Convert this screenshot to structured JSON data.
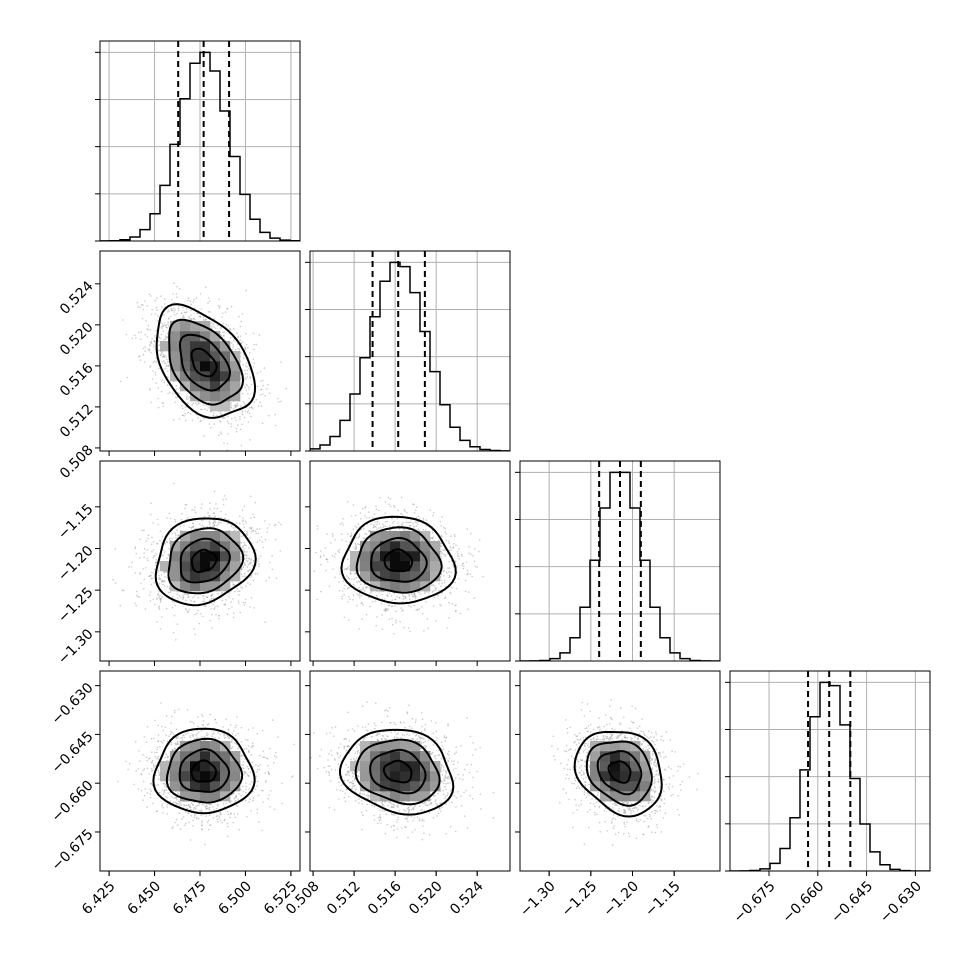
{
  "chart_data": {
    "type": "corner",
    "n_params": 4,
    "parameters": [
      {
        "index": 0,
        "mean": 6.477,
        "sd": 0.0135,
        "range": [
          6.42,
          6.53
        ],
        "ticks": [
          6.425,
          6.45,
          6.475,
          6.5,
          6.525
        ],
        "tick_labels": [
          "6.425",
          "6.450",
          "6.475",
          "6.500",
          "6.525"
        ],
        "quantiles": [
          6.463,
          6.477,
          6.491
        ]
      },
      {
        "index": 1,
        "mean": 0.5163,
        "sd": 0.0027,
        "range": [
          0.5077,
          0.5272
        ],
        "ticks": [
          0.508,
          0.512,
          0.516,
          0.52,
          0.524
        ],
        "tick_labels": [
          "0.508",
          "0.512",
          "0.516",
          "0.520",
          "0.524"
        ],
        "quantiles": [
          0.5138,
          0.5163,
          0.5189
        ]
      },
      {
        "index": 2,
        "mean": -1.215,
        "sd": 0.026,
        "range": [
          -1.335,
          -1.095
        ],
        "ticks": [
          -1.3,
          -1.25,
          -1.2,
          -1.15
        ],
        "tick_labels": [
          "−1.30",
          "−1.25",
          "−1.20",
          "−1.15"
        ],
        "quantiles": [
          -1.24,
          -1.215,
          -1.19
        ]
      },
      {
        "index": 3,
        "mean": -0.6565,
        "sd": 0.0065,
        "range": [
          -0.687,
          -0.6255
        ],
        "ticks": [
          -0.675,
          -0.66,
          -0.645,
          -0.63
        ],
        "tick_labels": [
          "−0.675",
          "−0.660",
          "−0.645",
          "−0.630"
        ],
        "quantiles": [
          -0.663,
          -0.6565,
          -0.65
        ]
      }
    ],
    "correlations": {
      "1-0": -0.4,
      "2-0": 0.15,
      "2-1": -0.05,
      "3-0": 0.0,
      "3-1": -0.15,
      "3-2": -0.2
    },
    "hist_bins": 20,
    "contour_levels_sigma": [
      0.5,
      1.0,
      1.5,
      2.0
    ],
    "grid": true,
    "colors": {
      "line": "#000000",
      "scatter": "#999999",
      "grid": "#b0b0b0"
    }
  }
}
